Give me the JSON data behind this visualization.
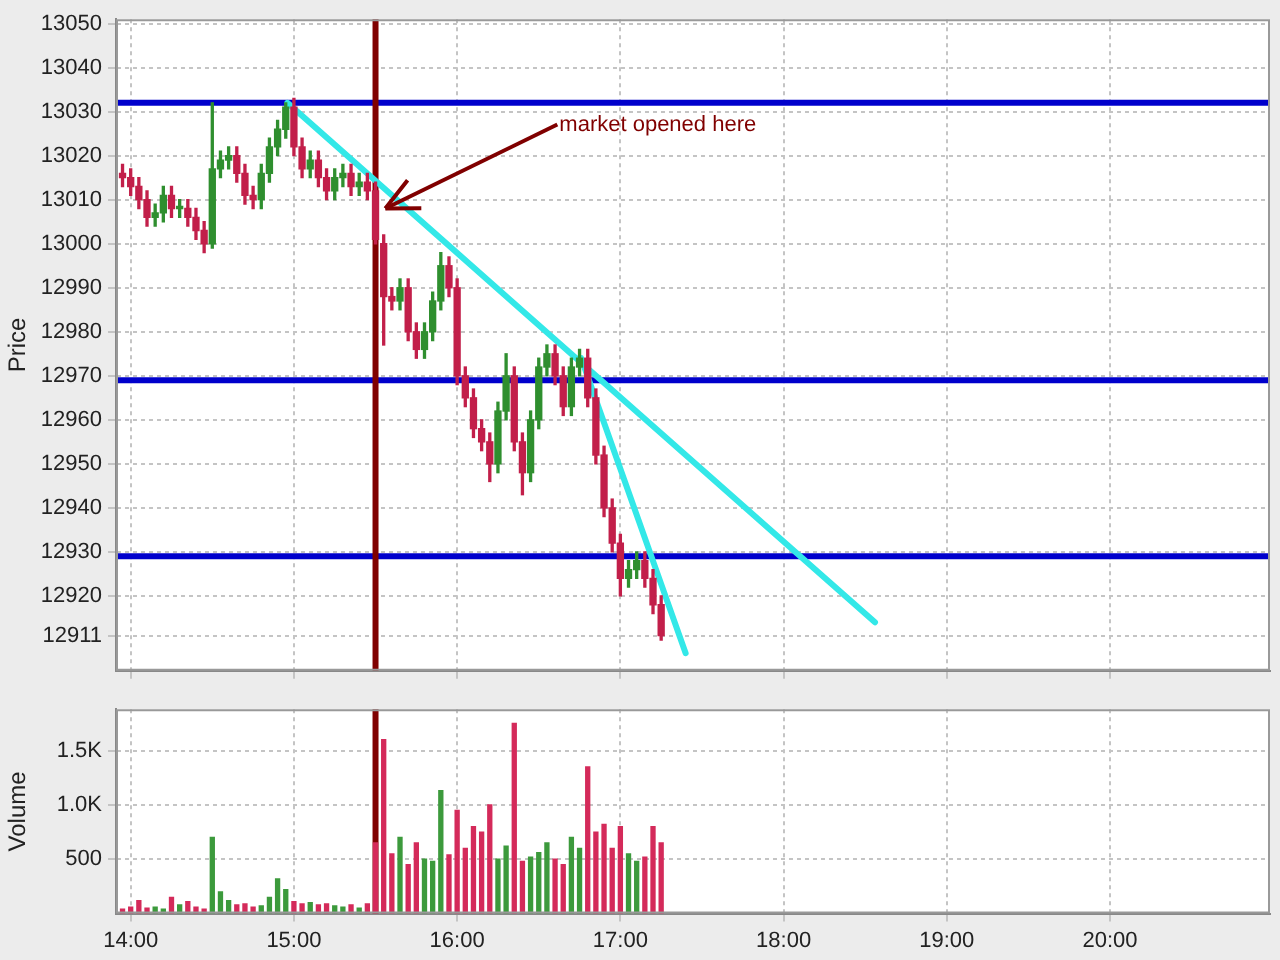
{
  "chart_data": [
    {
      "type": "candlestick",
      "ylabel": "Price",
      "x": [
        13.95,
        14,
        14.05,
        14.1,
        14.15,
        14.2,
        14.25,
        14.3,
        14.35,
        14.4,
        14.45,
        14.5,
        14.55,
        14.6,
        14.65,
        14.7,
        14.75,
        14.8,
        14.85,
        14.9,
        14.95,
        15,
        15.05,
        15.1,
        15.15,
        15.2,
        15.25,
        15.3,
        15.35,
        15.4,
        15.45,
        15.5,
        15.55,
        15.6,
        15.65,
        15.7,
        15.75,
        15.8,
        15.85,
        15.9,
        15.95,
        16,
        16.05,
        16.1,
        16.15,
        16.2,
        16.25,
        16.3,
        16.35,
        16.4,
        16.45,
        16.5,
        16.55,
        16.6,
        16.65,
        16.7,
        16.75,
        16.8,
        16.85,
        16.9,
        16.95,
        17,
        17.05,
        17.1,
        17.15,
        17.2,
        17.25
      ],
      "ohlc": [
        [
          13016,
          13018,
          13013,
          13015
        ],
        [
          13015,
          13017,
          13011,
          13013
        ],
        [
          13013,
          13015,
          13008,
          13010
        ],
        [
          13010,
          13012,
          13004,
          13006
        ],
        [
          13006,
          13009,
          13004,
          13007
        ],
        [
          13007,
          13013,
          13005,
          13011
        ],
        [
          13011,
          13013,
          13006,
          13008
        ],
        [
          13008,
          13010,
          13006,
          13008
        ],
        [
          13008,
          13010,
          13004,
          13006
        ],
        [
          13006,
          13008,
          13001,
          13003
        ],
        [
          13003,
          13005,
          12998,
          13000
        ],
        [
          13000,
          13032,
          12999,
          13017
        ],
        [
          13017,
          13021,
          13015,
          13019
        ],
        [
          13019,
          13022,
          13017,
          13020
        ],
        [
          13020,
          13022,
          13014,
          13016
        ],
        [
          13016,
          13018,
          13009,
          13011
        ],
        [
          13011,
          13013,
          13008,
          13010
        ],
        [
          13010,
          13018,
          13008,
          13016
        ],
        [
          13016,
          13024,
          13014,
          13022
        ],
        [
          13022,
          13028,
          13020,
          13026
        ],
        [
          13026,
          13032,
          13024,
          13031
        ],
        [
          13031,
          13033,
          13020,
          13022
        ],
        [
          13022,
          13024,
          13015,
          13017
        ],
        [
          13017,
          13021,
          13015,
          13019
        ],
        [
          13019,
          13021,
          13013,
          13015
        ],
        [
          13015,
          13017,
          13010,
          13012
        ],
        [
          13012,
          13017,
          13010,
          13015
        ],
        [
          13015,
          13018,
          13013,
          13016
        ],
        [
          13016,
          13018,
          13011,
          13013
        ],
        [
          13013,
          13016,
          13011,
          13014
        ],
        [
          13014,
          13016,
          13010,
          13012
        ],
        [
          13012,
          13014,
          13000,
          13001
        ],
        [
          13000,
          13002,
          12977,
          12988
        ],
        [
          12988,
          12990,
          12985,
          12987
        ],
        [
          12987,
          12992,
          12985,
          12990
        ],
        [
          12990,
          12992,
          12978,
          12980
        ],
        [
          12980,
          12982,
          12974,
          12976
        ],
        [
          12976,
          12982,
          12974,
          12980
        ],
        [
          12980,
          12989,
          12978,
          12987
        ],
        [
          12987,
          12998,
          12985,
          12995
        ],
        [
          12995,
          12997,
          12988,
          12990
        ],
        [
          12990,
          12992,
          12968,
          12970
        ],
        [
          12970,
          12972,
          12963,
          12965
        ],
        [
          12965,
          12967,
          12956,
          12958
        ],
        [
          12958,
          12960,
          12953,
          12955
        ],
        [
          12955,
          12957,
          12946,
          12950
        ],
        [
          12950,
          12964,
          12948,
          12962
        ],
        [
          12962,
          12975,
          12960,
          12970
        ],
        [
          12970,
          12972,
          12953,
          12955
        ],
        [
          12955,
          12957,
          12943,
          12948
        ],
        [
          12948,
          12962,
          12946,
          12960
        ],
        [
          12960,
          12974,
          12958,
          12972
        ],
        [
          12972,
          12977,
          12970,
          12975
        ],
        [
          12975,
          12977,
          12968,
          12970
        ],
        [
          12970,
          12972,
          12961,
          12963
        ],
        [
          12963,
          12974,
          12961,
          12972
        ],
        [
          12972,
          12976,
          12970,
          12974
        ],
        [
          12974,
          12976,
          12963,
          12965
        ],
        [
          12965,
          12967,
          12950,
          12952
        ],
        [
          12952,
          12954,
          12938,
          12940
        ],
        [
          12940,
          12942,
          12930,
          12932
        ],
        [
          12932,
          12934,
          12920,
          12924
        ],
        [
          12924,
          12928,
          12922,
          12926
        ],
        [
          12926,
          12930,
          12924,
          12928
        ],
        [
          12928,
          12930,
          12922,
          12924
        ],
        [
          12924,
          12926,
          12916,
          12918
        ],
        [
          12918,
          12920,
          12910,
          12911
        ]
      ],
      "series": [
        {
          "type": "line",
          "x": [
            14.96,
            18.56
          ],
          "values": [
            13032,
            12914
          ],
          "color": "#33e8e8"
        },
        {
          "type": "line",
          "x": [
            16.76,
            17.4
          ],
          "values": [
            12974,
            12907
          ],
          "color": "#33e8e8"
        }
      ],
      "marker": "none",
      "xlim": [
        13.91,
        20.98
      ],
      "xticks": [
        {
          "value": 14,
          "label": null
        },
        {
          "value": 15,
          "label": null
        },
        {
          "value": 16,
          "label": null
        },
        {
          "value": 17,
          "label": null
        },
        {
          "value": 18,
          "label": null
        },
        {
          "value": 19,
          "label": null
        },
        {
          "value": 20,
          "label": null
        }
      ],
      "ylim": [
        12903,
        13051
      ],
      "yticks": [
        12911,
        12920,
        12930,
        12940,
        12950,
        12960,
        12970,
        12980,
        12990,
        13000,
        13010,
        13020,
        13030,
        13040,
        13050
      ],
      "tick_labels": "y",
      "grid": true,
      "ref_lines": [
        {
          "axis": "y",
          "value": 13032,
          "color": "#0000cc"
        },
        {
          "axis": "y",
          "value": 12969,
          "color": "#0000cc"
        },
        {
          "axis": "y",
          "value": 12929,
          "color": "#0000cc"
        },
        {
          "axis": "x",
          "value": 15.5,
          "color": "#800000"
        }
      ],
      "annotations": [
        {
          "text": "market opened here",
          "x": 15.56,
          "y": 13008
        }
      ]
    },
    {
      "type": "bar",
      "ylabel": "Volume",
      "x": [
        13.95,
        14,
        14.05,
        14.1,
        14.15,
        14.2,
        14.25,
        14.3,
        14.35,
        14.4,
        14.45,
        14.5,
        14.55,
        14.6,
        14.65,
        14.7,
        14.75,
        14.8,
        14.85,
        14.9,
        14.95,
        15,
        15.05,
        15.1,
        15.15,
        15.2,
        15.25,
        15.3,
        15.35,
        15.4,
        15.45,
        15.5,
        15.55,
        15.6,
        15.65,
        15.7,
        15.75,
        15.8,
        15.85,
        15.9,
        15.95,
        16,
        16.05,
        16.1,
        16.15,
        16.2,
        16.25,
        16.3,
        16.35,
        16.4,
        16.45,
        16.5,
        16.55,
        16.6,
        16.65,
        16.7,
        16.75,
        16.8,
        16.85,
        16.9,
        16.95,
        17,
        17.05,
        17.1,
        17.15,
        17.2,
        17.25
      ],
      "values": [
        40,
        60,
        120,
        50,
        60,
        40,
        150,
        80,
        110,
        60,
        40,
        700,
        200,
        120,
        80,
        90,
        60,
        70,
        150,
        320,
        220,
        110,
        90,
        100,
        80,
        90,
        70,
        60,
        80,
        50,
        90,
        650,
        1600,
        550,
        700,
        450,
        650,
        500,
        480,
        1130,
        540,
        950,
        600,
        800,
        750,
        1000,
        500,
        620,
        1750,
        480,
        520,
        560,
        650,
        500,
        450,
        700,
        600,
        1350,
        750,
        820,
        600,
        800,
        550,
        480,
        520,
        800,
        650
      ],
      "colors": [
        "#d42a5a",
        "#d42a5a",
        "#d42a5a",
        "#d42a5a",
        "#3c9a3c",
        "#3c9a3c",
        "#d42a5a",
        "#3c9a3c",
        "#d42a5a",
        "#d42a5a",
        "#d42a5a",
        "#3c9a3c",
        "#3c9a3c",
        "#3c9a3c",
        "#d42a5a",
        "#d42a5a",
        "#d42a5a",
        "#3c9a3c",
        "#3c9a3c",
        "#3c9a3c",
        "#3c9a3c",
        "#d42a5a",
        "#d42a5a",
        "#3c9a3c",
        "#d42a5a",
        "#d42a5a",
        "#3c9a3c",
        "#3c9a3c",
        "#d42a5a",
        "#3c9a3c",
        "#d42a5a",
        "#d42a5a",
        "#d42a5a",
        "#d42a5a",
        "#3c9a3c",
        "#d42a5a",
        "#d42a5a",
        "#3c9a3c",
        "#3c9a3c",
        "#3c9a3c",
        "#d42a5a",
        "#d42a5a",
        "#d42a5a",
        "#d42a5a",
        "#d42a5a",
        "#d42a5a",
        "#3c9a3c",
        "#3c9a3c",
        "#d42a5a",
        "#d42a5a",
        "#3c9a3c",
        "#3c9a3c",
        "#3c9a3c",
        "#d42a5a",
        "#d42a5a",
        "#3c9a3c",
        "#3c9a3c",
        "#d42a5a",
        "#d42a5a",
        "#d42a5a",
        "#d42a5a",
        "#d42a5a",
        "#3c9a3c",
        "#3c9a3c",
        "#d42a5a",
        "#d42a5a",
        "#d42a5a"
      ],
      "xlim": [
        13.91,
        20.98
      ],
      "xticks": [
        {
          "value": 14,
          "label": "14:00"
        },
        {
          "value": 15,
          "label": "15:00"
        },
        {
          "value": 16,
          "label": "16:00"
        },
        {
          "value": 17,
          "label": "17:00"
        },
        {
          "value": 18,
          "label": "18:00"
        },
        {
          "value": 19,
          "label": "19:00"
        },
        {
          "value": 20,
          "label": "20:00"
        }
      ],
      "ylim": [
        0,
        1880
      ],
      "yticks": [
        500,
        {
          "value": 1000,
          "label": "1.0K"
        },
        {
          "value": 1500,
          "label": "1.5K"
        }
      ],
      "grid": true,
      "ref_lines": [
        {
          "axis": "x",
          "value": 15.5,
          "color": "#800000"
        }
      ]
    }
  ]
}
